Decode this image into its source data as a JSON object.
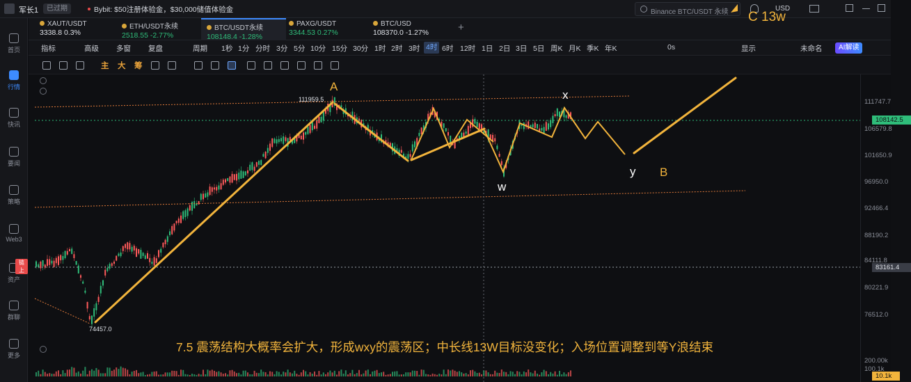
{
  "topbar": {
    "user_name": "军长1",
    "expired": "已过期",
    "news": "Bybit: $50注册体验金，$30,000储值体验金",
    "search_placeholder": "Binance BTC/USDT 永续",
    "currency": "USD"
  },
  "sidebar": {
    "items": [
      {
        "label": "首页"
      },
      {
        "label": "行情"
      },
      {
        "label": "快讯"
      },
      {
        "label": "要闻"
      },
      {
        "label": "策略"
      },
      {
        "label": "Web3"
      },
      {
        "label": "资产"
      },
      {
        "label": "群聊"
      },
      {
        "label": "更多"
      }
    ],
    "badge": "链上"
  },
  "tickers": [
    {
      "name": "XAUT/USDT",
      "price": "3338.8",
      "change": "0.3%",
      "trend": "neutral"
    },
    {
      "name": "ETH/USDT永续",
      "price": "2518.55",
      "change": "-2.77%",
      "trend": "up"
    },
    {
      "name": "BTC/USDT永续",
      "price": "108148.4",
      "change": "-1.28%",
      "trend": "up"
    },
    {
      "name": "PAXG/USDT",
      "price": "3344.53",
      "change": "0.27%",
      "trend": "up"
    },
    {
      "name": "BTC/USD",
      "price": "108370.0",
      "change": "-1.27%",
      "trend": "neutral"
    }
  ],
  "toolbar": {
    "indicators": "指标",
    "advanced": "高级",
    "multi": "多窗",
    "replay": "复盘",
    "period": "周期",
    "intervals": [
      "1秒",
      "1分",
      "分时",
      "3分",
      "5分",
      "10分",
      "15分",
      "30分",
      "1时",
      "2时",
      "3时",
      "4时",
      "6时",
      "12时",
      "1日",
      "2日",
      "3日",
      "5日",
      "周K",
      "月K",
      "季K",
      "年K"
    ],
    "selected_interval": "4时",
    "zero_s": "0s",
    "display": "显示",
    "unnamed": "未命名",
    "ai": "AI解读"
  },
  "drawbar": {
    "main": "主",
    "big": "大",
    "chip": "筹"
  },
  "chart": {
    "price_labels": [
      "111747.7",
      "108142.5",
      "106579.8",
      "101650.9",
      "96950.0",
      "92466.4",
      "88190.2",
      "84111.8",
      "83161.4",
      "80221.9",
      "76512.0",
      "200.00k",
      "100.1k",
      "10.1k"
    ],
    "high_annotation": "111959.5",
    "low_annotation": "74457.0",
    "wave_labels": {
      "A": "A",
      "x": "x",
      "w": "w",
      "y": "y",
      "B": "B",
      "C": "C 13w"
    },
    "note": "7.5 震荡结构大概率会扩大，形成wxy的震荡区；中长线13W目标没变化；入场位置调整到等Y浪结束",
    "colors": {
      "arrow": "#f2b43c",
      "up": "#2fbd7a",
      "down": "#ff5b5b",
      "accent": "#3d8bff"
    }
  }
}
